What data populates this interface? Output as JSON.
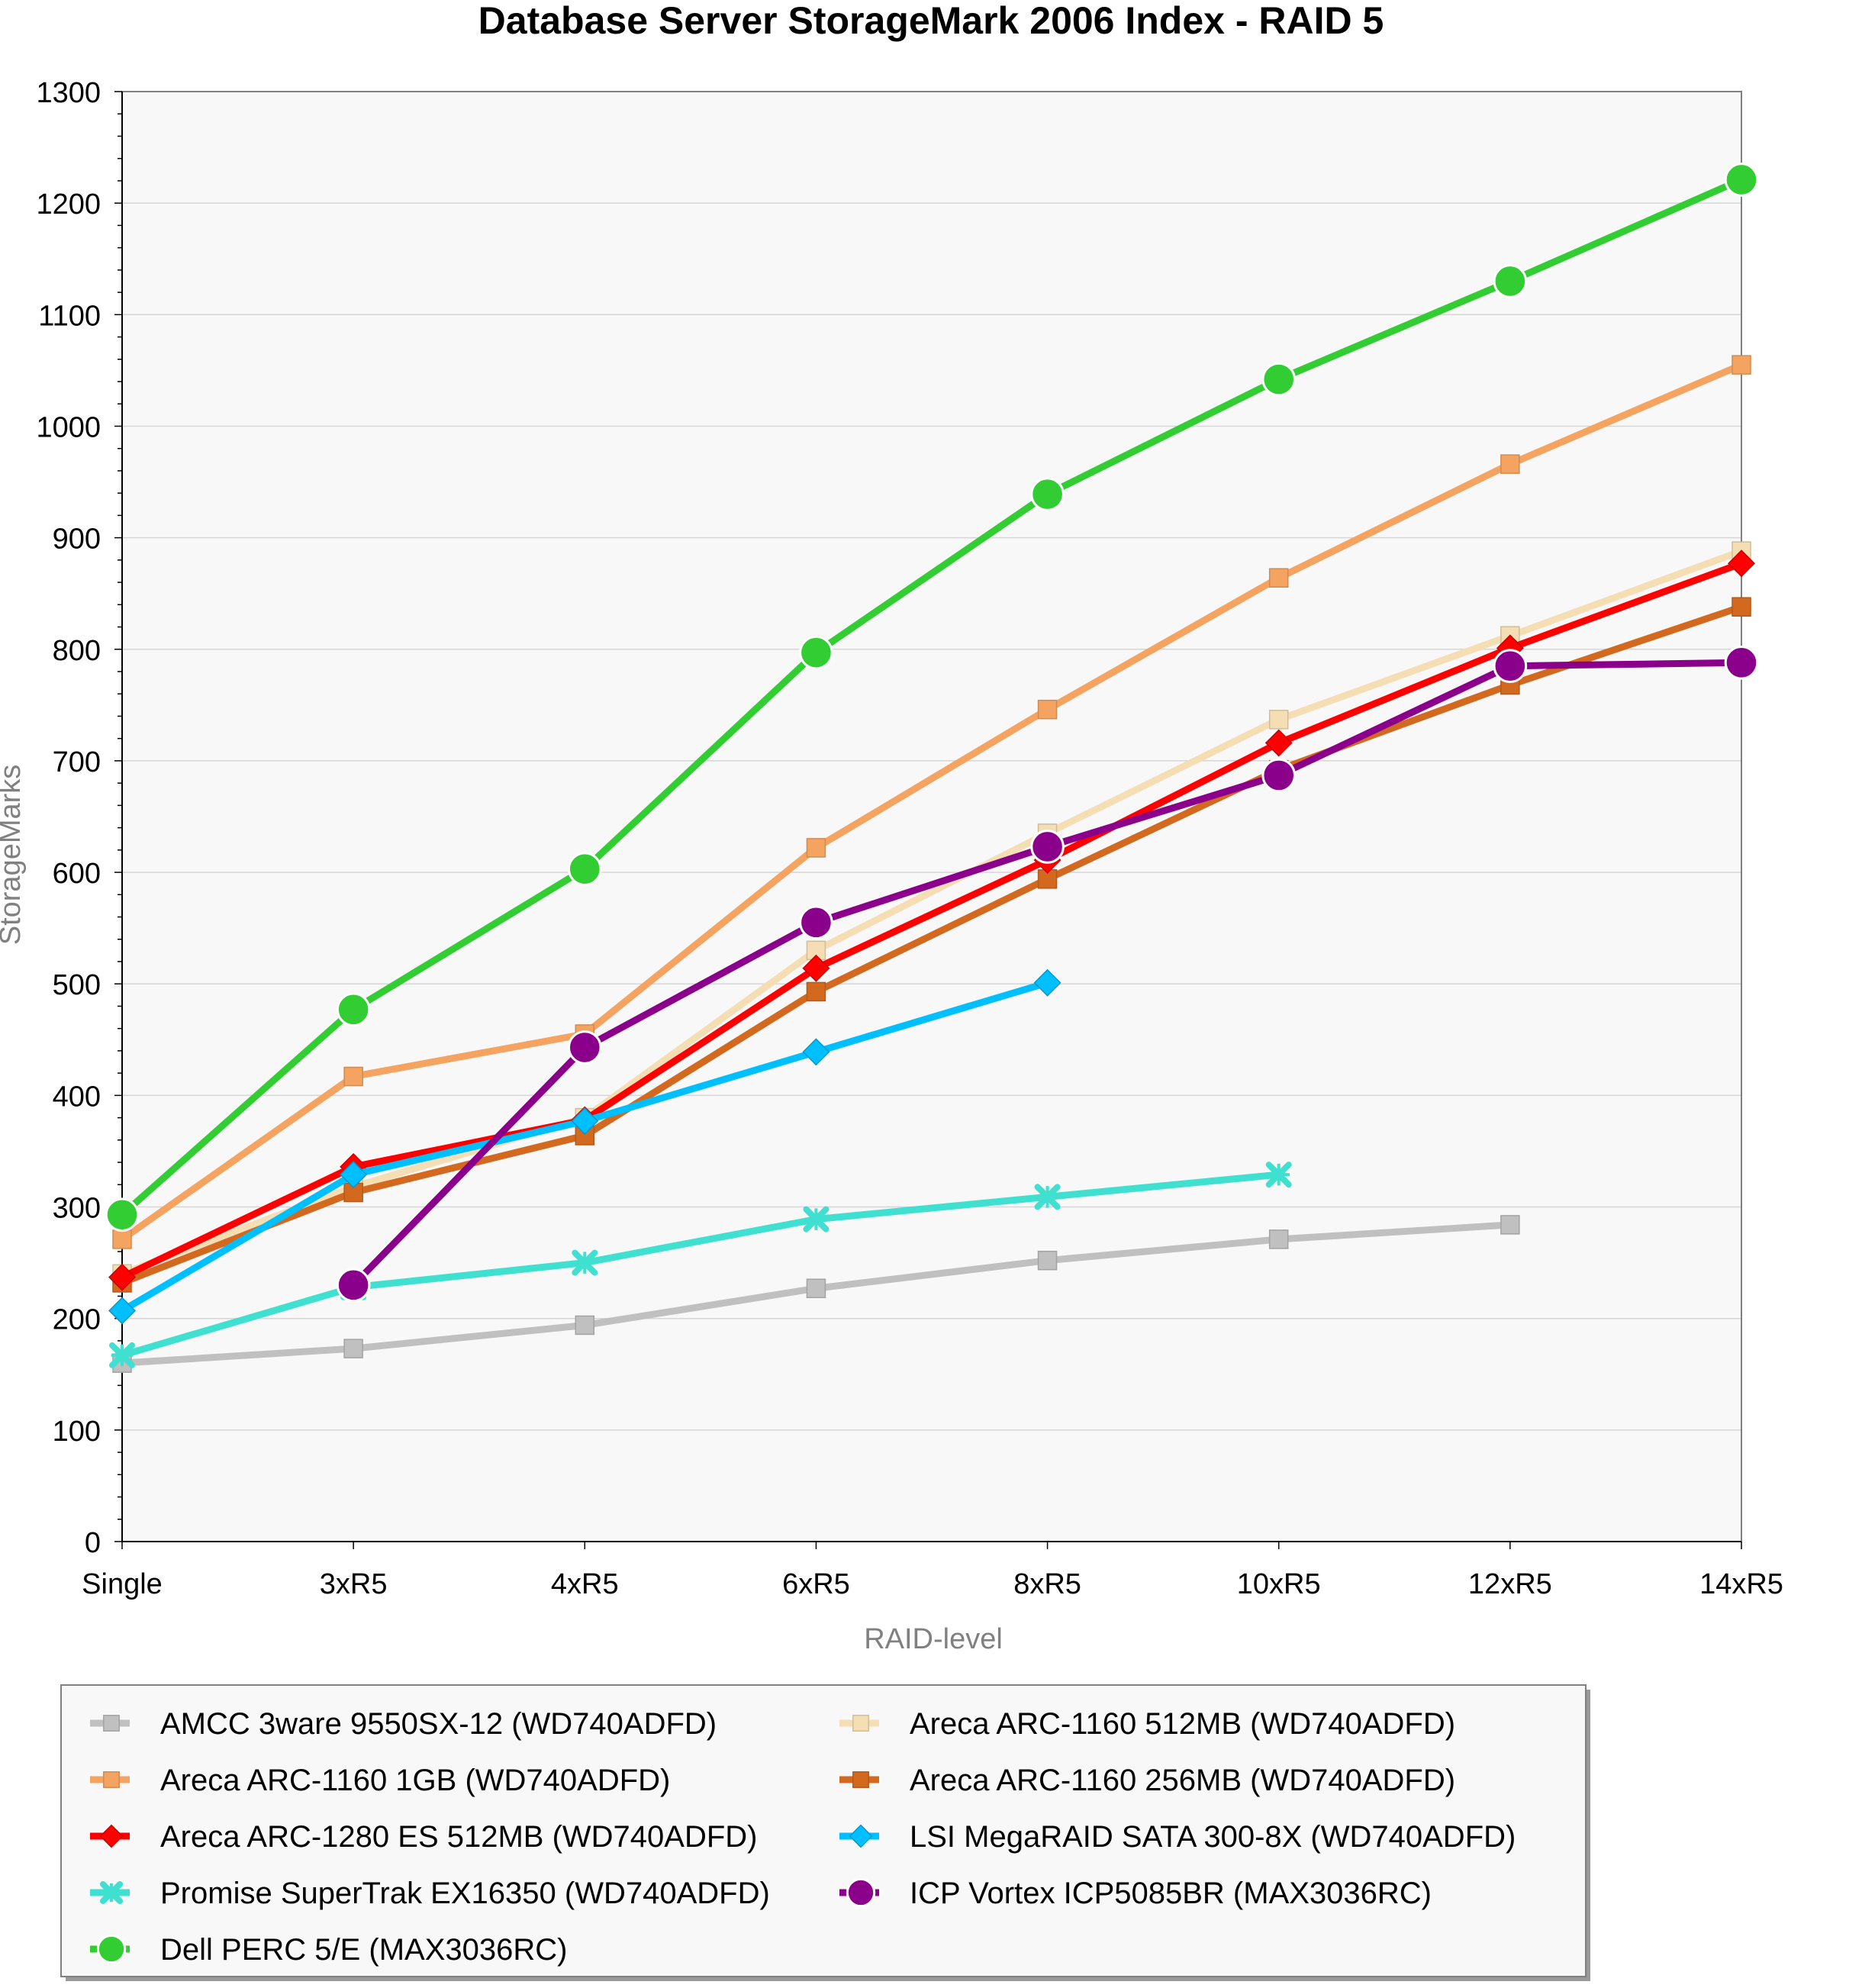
{
  "chart_data": {
    "type": "line",
    "title": "Database Server StorageMark 2006 Index - RAID 5",
    "xlabel": "RAID-level",
    "ylabel": "StorageMarks",
    "categories": [
      "Single",
      "3xR5",
      "4xR5",
      "6xR5",
      "8xR5",
      "10xR5",
      "12xR5",
      "14xR5"
    ],
    "ylim": [
      0,
      1300
    ],
    "yticks": [
      0,
      100,
      200,
      300,
      400,
      500,
      600,
      700,
      800,
      900,
      1000,
      1100,
      1200,
      1300
    ],
    "grid": true,
    "legend_position": "bottom",
    "series": [
      {
        "name": "AMCC 3ware 9550SX-12 (WD740ADFD)",
        "color": "#c0c0c0",
        "marker": "square",
        "values": [
          160,
          173,
          194,
          227,
          252,
          271,
          284,
          null
        ]
      },
      {
        "name": "Areca ARC-1160 512MB (WD740ADFD)",
        "color": "#f5deb3",
        "marker": "square",
        "values": [
          240,
          318,
          380,
          530,
          635,
          737,
          812,
          888
        ]
      },
      {
        "name": "Areca ARC-1160 1GB (WD740ADFD)",
        "color": "#f4a460",
        "marker": "square",
        "values": [
          271,
          417,
          455,
          622,
          746,
          864,
          966,
          1055
        ]
      },
      {
        "name": "Areca ARC-1160 256MB (WD740ADFD)",
        "color": "#d2691e",
        "marker": "square",
        "values": [
          232,
          313,
          364,
          493,
          594,
          692,
          768,
          838
        ]
      },
      {
        "name": "Areca ARC-1280 ES 512MB (WD740ADFD)",
        "color": "#ff0000",
        "marker": "diamond",
        "values": [
          237,
          336,
          378,
          514,
          611,
          716,
          801,
          877
        ]
      },
      {
        "name": "LSI MegaRAID SATA 300-8X (WD740ADFD)",
        "color": "#00bfff",
        "marker": "diamond",
        "values": [
          207,
          329,
          377,
          439,
          501,
          null,
          null,
          null
        ]
      },
      {
        "name": "Promise SuperTrak EX16350 (WD740ADFD)",
        "color": "#40e0d0",
        "marker": "x",
        "values": [
          167,
          228,
          250,
          289,
          309,
          329,
          null,
          null
        ]
      },
      {
        "name": "ICP Vortex ICP5085BR (MAX3036RC)",
        "color": "#8b008b",
        "marker": "circle",
        "values": [
          null,
          230,
          443,
          555,
          623,
          687,
          785,
          788
        ]
      },
      {
        "name": "Dell PERC 5/E (MAX3036RC)",
        "color": "#32cd32",
        "marker": "circle",
        "values": [
          293,
          477,
          603,
          797,
          939,
          1042,
          1130,
          1221
        ]
      }
    ]
  }
}
